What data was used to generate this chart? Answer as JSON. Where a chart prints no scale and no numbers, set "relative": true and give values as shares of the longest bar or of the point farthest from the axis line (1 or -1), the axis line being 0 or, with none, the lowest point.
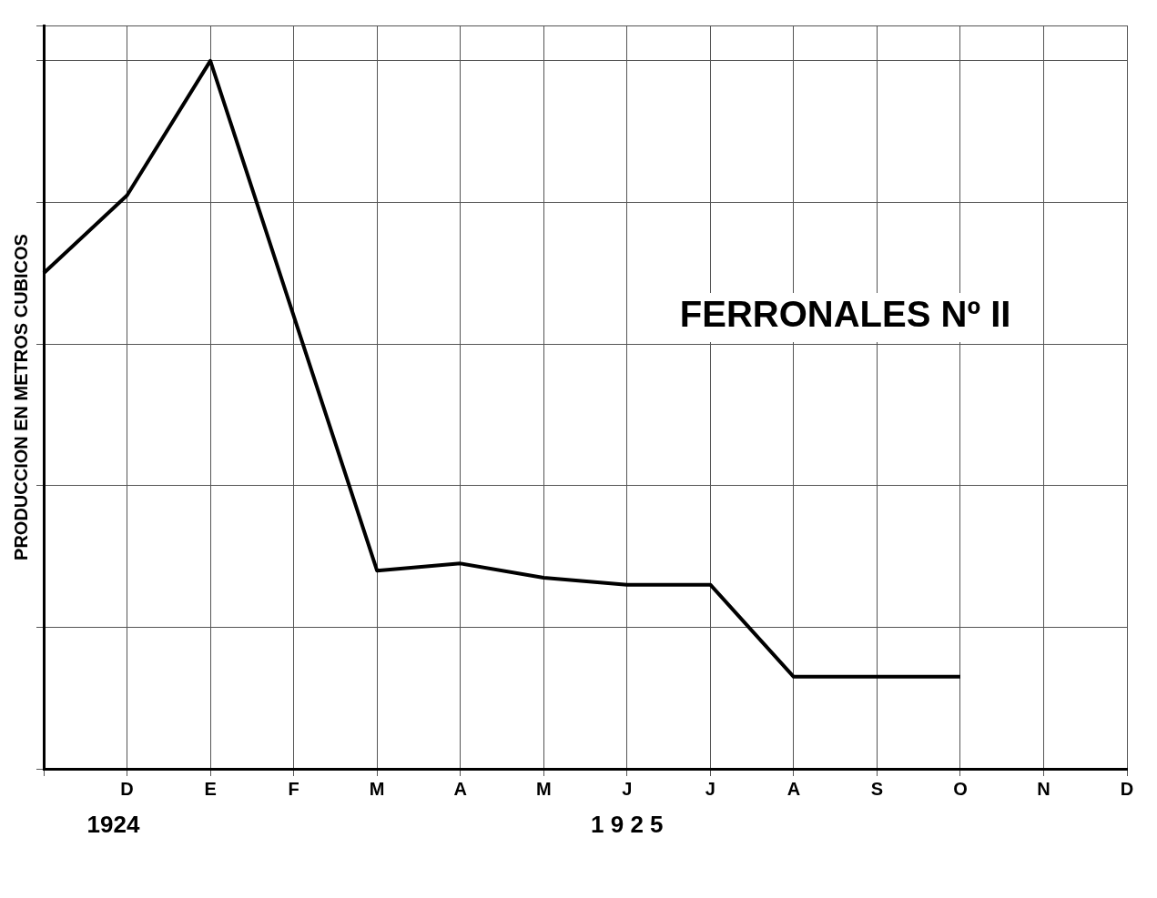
{
  "chart_data": {
    "type": "line",
    "title": "FERRONALES Nº II",
    "ylabel": "PRODUCCION EN METROS CUBICOS",
    "relative": true,
    "categories": [
      null,
      "D",
      "E",
      "F",
      "M",
      "A",
      "M",
      "J",
      "J",
      "A",
      "S",
      "O",
      "N",
      "D"
    ],
    "series": [
      {
        "color": "#000000",
        "values": [
          0.7,
          0.81,
          1,
          0.64,
          0.28,
          0.29,
          0.27,
          0.26,
          0.26,
          0.13,
          0.13,
          0.13,
          null,
          null
        ]
      }
    ],
    "annotations": [
      "1924",
      "1 9 2 5"
    ],
    "grid": true,
    "legend": false,
    "marker": "none",
    "line_style": "solid"
  }
}
